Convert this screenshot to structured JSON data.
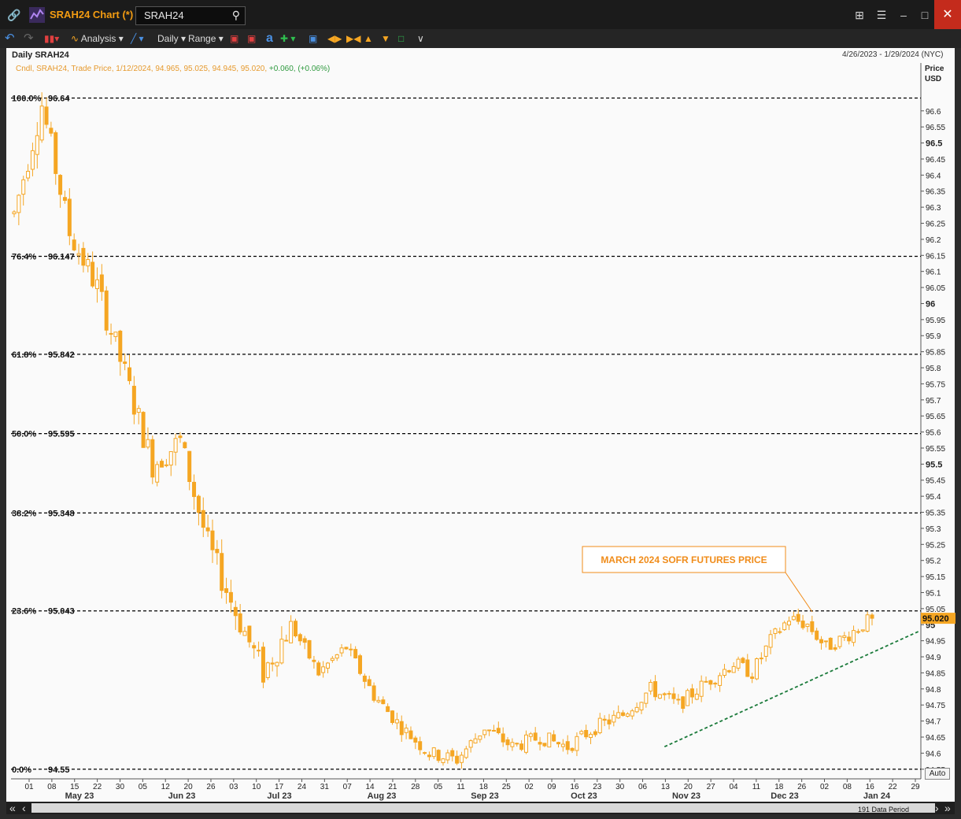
{
  "window": {
    "title": "SRAH24 Chart (*)",
    "search_value": "SRAH24"
  },
  "toolbar": {
    "analysis_label": "Analysis",
    "interval_label": "Daily",
    "range_label": "Range"
  },
  "chart_header": {
    "title": "Daily SRAH24",
    "date_range": "4/26/2023 - 1/29/2024 (NYC)",
    "legend_text": "Cndl, SRAH24, Trade Price, 1/12/2024, 94.965, 95.025, 94.945, 95.020,",
    "legend_change": "+0.060, (+0.06%)",
    "axis_title_line1": "Price",
    "axis_title_line2": "USD",
    "auto_label": "Auto",
    "data_period_label": "191 Data Period"
  },
  "colors": {
    "candle": "#f5a623",
    "fib_line": "#000000",
    "trendline": "#1a7a3a",
    "annotation": "#f08c1a",
    "last_price_bg": "#f5a623"
  },
  "chart_data": {
    "type": "candlestick",
    "ylim": [
      94.52,
      96.7
    ],
    "y_ticks": [
      "96.6",
      "96.55",
      "96.5",
      "96.45",
      "96.4",
      "96.35",
      "96.3",
      "96.25",
      "96.2",
      "96.15",
      "96.1",
      "96.05",
      "96",
      "95.95",
      "95.9",
      "95.85",
      "95.8",
      "95.75",
      "95.7",
      "95.65",
      "95.6",
      "95.55",
      "95.5",
      "95.45",
      "95.4",
      "95.35",
      "95.3",
      "95.25",
      "95.2",
      "95.15",
      "95.1",
      "95.05",
      "95",
      "94.95",
      "94.9",
      "94.85",
      "94.8",
      "94.75",
      "94.7",
      "94.65",
      "94.6",
      "94.55"
    ],
    "y_ticks_bold": [
      "96.5",
      "96",
      "95.5",
      "95"
    ],
    "x_ticks": [
      "01",
      "08",
      "15",
      "22",
      "30",
      "05",
      "12",
      "20",
      "26",
      "03",
      "10",
      "17",
      "24",
      "31",
      "07",
      "14",
      "21",
      "28",
      "05",
      "11",
      "18",
      "25",
      "02",
      "09",
      "16",
      "23",
      "30",
      "06",
      "13",
      "20",
      "27",
      "04",
      "11",
      "18",
      "26",
      "02",
      "08",
      "16",
      "22",
      "29"
    ],
    "month_labels": [
      "May 23",
      "Jun 23",
      "Jul 23",
      "Aug 23",
      "Sep 23",
      "Oct 23",
      "Nov 23",
      "Dec 23",
      "Jan 24"
    ],
    "fib_levels": [
      {
        "label": "100.0%",
        "value": 96.64,
        "text": "96.64"
      },
      {
        "label": "76.4%",
        "value": 96.147,
        "text": "96.147"
      },
      {
        "label": "61.8%",
        "value": 95.842,
        "text": "95.842"
      },
      {
        "label": "50.0%",
        "value": 95.595,
        "text": "95.595"
      },
      {
        "label": "38.2%",
        "value": 95.348,
        "text": "95.348"
      },
      {
        "label": "23.6%",
        "value": 95.043,
        "text": "95.043"
      },
      {
        "label": "0.0%",
        "value": 94.55,
        "text": "94.55"
      }
    ],
    "last_price": "95.020",
    "annotation": "MARCH 2024 SOFR FUTURES PRICE",
    "trendline": {
      "start": {
        "bar": 141,
        "price": 94.62
      },
      "end": {
        "bar": 190,
        "price": 94.98
      }
    },
    "price_path": [
      [
        0,
        96.28
      ],
      [
        6,
        96.62
      ],
      [
        12,
        96.22
      ],
      [
        18,
        96.05
      ],
      [
        24,
        95.78
      ],
      [
        30,
        95.5
      ],
      [
        36,
        95.57
      ],
      [
        42,
        95.25
      ],
      [
        48,
        95.04
      ],
      [
        54,
        94.85
      ],
      [
        60,
        95.0
      ],
      [
        66,
        94.85
      ],
      [
        72,
        94.93
      ],
      [
        78,
        94.78
      ],
      [
        84,
        94.68
      ],
      [
        90,
        94.6
      ],
      [
        96,
        94.58
      ],
      [
        102,
        94.68
      ],
      [
        108,
        94.62
      ],
      [
        114,
        94.65
      ],
      [
        120,
        94.62
      ],
      [
        126,
        94.68
      ],
      [
        132,
        94.72
      ],
      [
        138,
        94.8
      ],
      [
        144,
        94.75
      ],
      [
        150,
        94.82
      ],
      [
        156,
        94.88
      ],
      [
        160,
        94.85
      ],
      [
        164,
        94.95
      ],
      [
        168,
        95.02
      ],
      [
        172,
        95.0
      ],
      [
        176,
        94.93
      ],
      [
        180,
        94.96
      ],
      [
        186,
        95.02
      ]
    ]
  }
}
